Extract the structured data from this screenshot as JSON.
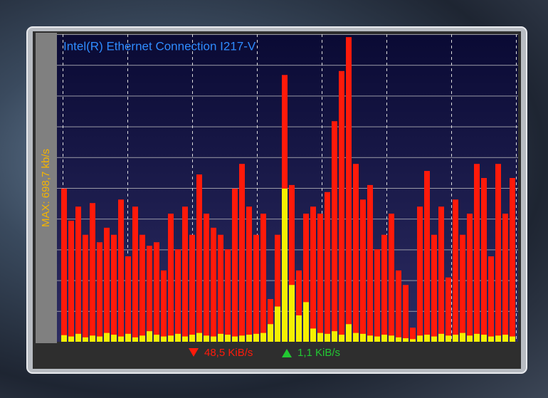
{
  "widget": {
    "title": "Intel(R) Ethernet Connection I217-V",
    "max_label": "MAX: 698,7 kb/s",
    "download_label": "48,5 KiB/s",
    "upload_label": "1,1 KiB/s"
  },
  "chart_data": {
    "type": "bar",
    "ylim": [
      0,
      698.7
    ],
    "series": [
      {
        "name": "Download",
        "color": "#ff1a0a",
        "values": [
          348,
          275,
          307,
          243,
          315,
          226,
          259,
          243,
          323,
          194,
          307,
          243,
          218,
          226,
          162,
          291,
          210,
          307,
          243,
          380,
          291,
          259,
          243,
          210,
          348,
          404,
          307,
          243,
          291,
          97,
          243,
          606,
          356,
          162,
          291,
          307,
          291,
          340,
          501,
          615,
          692,
          404,
          323,
          356,
          210,
          243,
          291,
          162,
          129,
          32,
          307,
          388,
          243,
          307,
          146,
          323,
          243,
          291,
          404,
          372,
          194,
          404,
          291,
          372
        ]
      },
      {
        "name": "Upload",
        "color": "#f5f000",
        "values": [
          15,
          12,
          18,
          10,
          14,
          12,
          20,
          16,
          12,
          18,
          10,
          14,
          24,
          16,
          12,
          14,
          18,
          12,
          16,
          20,
          14,
          12,
          18,
          16,
          12,
          14,
          16,
          18,
          20,
          40,
          80,
          348,
          129,
          60,
          90,
          30,
          20,
          18,
          24,
          16,
          40,
          20,
          18,
          14,
          12,
          16,
          14,
          10,
          8,
          6,
          14,
          16,
          12,
          18,
          14,
          16,
          20,
          14,
          18,
          16,
          12,
          14,
          16,
          12
        ]
      }
    ]
  }
}
